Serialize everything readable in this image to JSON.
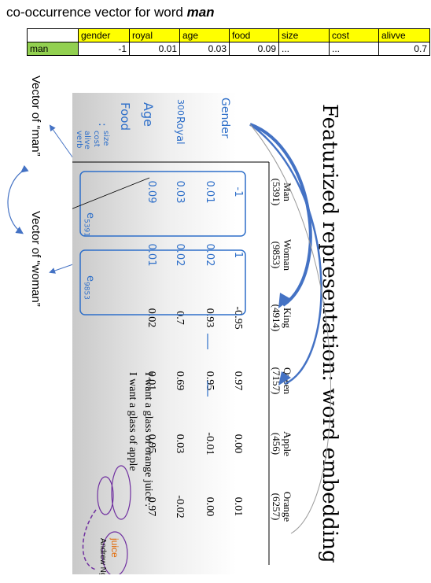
{
  "title_prefix": "co-occurrence  vector  for word ",
  "title_word": "man",
  "cooccurrence_table": {
    "headers": [
      "gender",
      "royal",
      "age",
      "food",
      "size",
      "cost",
      "alivve"
    ],
    "row_label": "man",
    "values": [
      "-1",
      "0.01",
      "0.03",
      "0.09",
      "...",
      "...",
      "0.7"
    ]
  },
  "side_labels": {
    "man": "Vector of “man”",
    "woman": "Vector of “woman”"
  },
  "slide": {
    "title": "Featurized representation: word embedding",
    "columns": [
      {
        "word": "Man",
        "id": "(5391)"
      },
      {
        "word": "Woman",
        "id": "(9853)"
      },
      {
        "word": "King",
        "id": "(4914)"
      },
      {
        "word": "Queen",
        "id": "(7157)"
      },
      {
        "word": "Apple",
        "id": "(456)"
      },
      {
        "word": "Orange",
        "id": "(6257)"
      }
    ],
    "rows": [
      [
        "-1",
        "1",
        "-0.95",
        "0.97",
        "0.00",
        "0.01"
      ],
      [
        "0.01",
        "0.02",
        "0.93",
        "0.95",
        "-0.01",
        "0.00"
      ],
      [
        "0.03",
        "0.02",
        "0.7",
        "0.69",
        "0.03",
        "-0.02"
      ],
      [
        "0.09",
        "0.01",
        "0.02",
        "0.01",
        "0.95",
        "0.97"
      ]
    ],
    "sentences": [
      "I want a glass of orange juice .",
      "I want a glass of apple"
    ],
    "juice_word": "juice",
    "author": "Andrew Ng",
    "handwriting": {
      "row_labels": [
        "Gender",
        "Royal",
        "Age",
        "Food"
      ],
      "small_labels": [
        "size",
        "cost",
        "alive",
        "verb"
      ],
      "dims": "300",
      "dots": ":",
      "e_man": "e",
      "e_man_sub": "5391",
      "e_woman": "e",
      "e_woman_sub": "9853"
    }
  },
  "colors": {
    "header": "#ffff00",
    "row_label": "#92d050",
    "arrow": "#4472c4",
    "circle": "#7030a0",
    "juice": "#e36c09"
  }
}
